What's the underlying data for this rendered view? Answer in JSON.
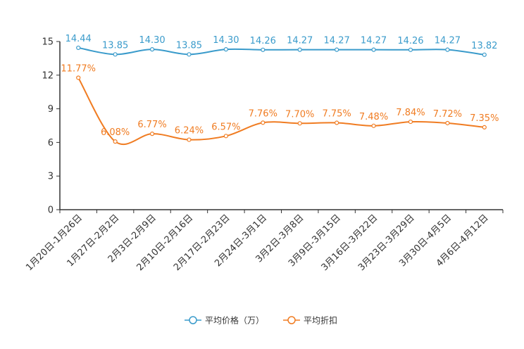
{
  "chart_data": {
    "type": "line",
    "title": "",
    "xlabel": "",
    "ylabel": "",
    "ylim": [
      0,
      15
    ],
    "yticks": [
      0,
      3,
      6,
      9,
      12,
      15
    ],
    "categories": [
      "1月20日-1月26日",
      "1月27日-2月2日",
      "2月3日-2月9日",
      "2月10日-2月16日",
      "2月17日-2月23日",
      "2月24日-3月1日",
      "3月2日-3月8日",
      "3月9日-3月15日",
      "3月16日-3月22日",
      "3月23日-3月29日",
      "3月30日-4月5日",
      "4月6日-4月12日"
    ],
    "legend_position": "bottom",
    "series": [
      {
        "name": "平均价格（万）",
        "color": "#3a9bcb",
        "values": [
          14.44,
          13.85,
          14.3,
          13.85,
          14.3,
          14.26,
          14.27,
          14.27,
          14.27,
          14.26,
          14.27,
          13.82
        ],
        "labels": [
          "14.44",
          "13.85",
          "14.30",
          "13.85",
          "14.30",
          "14.26",
          "14.27",
          "14.27",
          "14.27",
          "14.26",
          "14.27",
          "13.82"
        ]
      },
      {
        "name": "平均折扣",
        "color": "#f07c22",
        "values": [
          11.77,
          6.08,
          6.77,
          6.24,
          6.57,
          7.76,
          7.7,
          7.75,
          7.48,
          7.84,
          7.72,
          7.35
        ],
        "labels": [
          "11.77%",
          "6.08%",
          "6.77%",
          "6.24%",
          "6.57%",
          "7.76%",
          "7.70%",
          "7.75%",
          "7.48%",
          "7.84%",
          "7.72%",
          "7.35%"
        ]
      }
    ]
  }
}
